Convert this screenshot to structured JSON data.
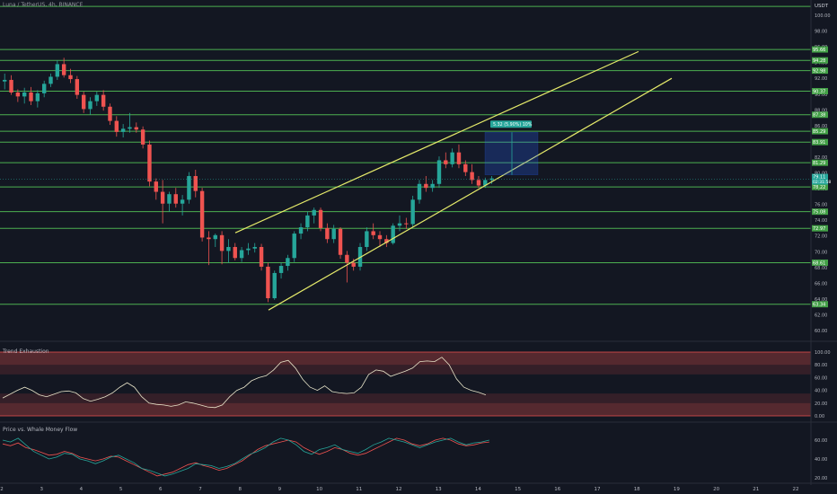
{
  "header": {
    "symbol": "Luna / TetherUS, 4h, BINANCE",
    "currency": "USDT"
  },
  "colors": {
    "background": "#131722",
    "support_line": "#4caf50",
    "channel": "#e5ea6a",
    "up": "#26a69a",
    "down": "#ef5350",
    "label_bg": "#43a047",
    "white_line": "#e8e4c9",
    "whale_green": "#26a69a",
    "whale_red": "#ef5350"
  },
  "main_panel": {
    "y_ticks": [
      "100.00",
      "98.00",
      "96.00",
      "94.00",
      "92.00",
      "90.00",
      "88.00",
      "86.00",
      "84.00",
      "82.00",
      "80.00",
      "78.00",
      "76.00",
      "74.00",
      "72.00",
      "70.00",
      "68.00",
      "66.00",
      "64.00",
      "62.00",
      "60.00"
    ],
    "horizontal_levels": [
      {
        "value": 101.12,
        "label": ""
      },
      {
        "value": 95.66,
        "label": "95.66"
      },
      {
        "value": 94.28,
        "label": "94.28"
      },
      {
        "value": 92.98,
        "label": "92.98"
      },
      {
        "value": 90.37,
        "label": "90.37"
      },
      {
        "value": 87.38,
        "label": "87.38"
      },
      {
        "value": 85.29,
        "label": "85.29"
      },
      {
        "value": 83.91,
        "label": "83.91"
      },
      {
        "value": 81.29,
        "label": "81.29"
      },
      {
        "value": 78.22,
        "label": "78.22"
      },
      {
        "value": 75.08,
        "label": "75.08"
      },
      {
        "value": 72.97,
        "label": "72.97"
      },
      {
        "value": 68.61,
        "label": "68.61"
      },
      {
        "value": 63.34,
        "label": "63.34"
      }
    ],
    "price_labels": {
      "current": "79.11",
      "countdown": "02:31:58"
    },
    "measure_label": "5.32 (5.90%) 10%",
    "candles": [
      {
        "o": 91.6,
        "h": 92.6,
        "l": 90.6,
        "c": 91.8
      },
      {
        "o": 91.8,
        "h": 92.4,
        "l": 89.9,
        "c": 90.2
      },
      {
        "o": 90.2,
        "h": 90.6,
        "l": 89.0,
        "c": 89.7
      },
      {
        "o": 89.7,
        "h": 90.8,
        "l": 88.8,
        "c": 90.2
      },
      {
        "o": 90.2,
        "h": 90.9,
        "l": 88.6,
        "c": 89.1
      },
      {
        "o": 89.1,
        "h": 90.5,
        "l": 88.3,
        "c": 90.1
      },
      {
        "o": 90.1,
        "h": 91.7,
        "l": 89.6,
        "c": 91.3
      },
      {
        "o": 91.3,
        "h": 92.6,
        "l": 90.9,
        "c": 92.2
      },
      {
        "o": 92.2,
        "h": 94.3,
        "l": 91.8,
        "c": 93.8
      },
      {
        "o": 93.8,
        "h": 94.6,
        "l": 92.1,
        "c": 92.4
      },
      {
        "o": 92.4,
        "h": 93.2,
        "l": 91.4,
        "c": 91.9
      },
      {
        "o": 91.9,
        "h": 92.3,
        "l": 89.4,
        "c": 89.9
      },
      {
        "o": 89.9,
        "h": 90.3,
        "l": 87.6,
        "c": 88.1
      },
      {
        "o": 88.1,
        "h": 89.6,
        "l": 87.4,
        "c": 89.1
      },
      {
        "o": 89.1,
        "h": 90.3,
        "l": 88.5,
        "c": 89.9
      },
      {
        "o": 89.9,
        "h": 90.5,
        "l": 87.9,
        "c": 88.4
      },
      {
        "o": 88.4,
        "h": 88.8,
        "l": 86.1,
        "c": 86.6
      },
      {
        "o": 86.6,
        "h": 87.2,
        "l": 84.6,
        "c": 85.2
      },
      {
        "o": 85.2,
        "h": 86.2,
        "l": 84.5,
        "c": 85.6
      },
      {
        "o": 85.6,
        "h": 87.6,
        "l": 85.1,
        "c": 85.8
      },
      {
        "o": 85.8,
        "h": 86.4,
        "l": 85.1,
        "c": 85.5
      },
      {
        "o": 85.5,
        "h": 85.9,
        "l": 83.1,
        "c": 83.6
      },
      {
        "o": 83.6,
        "h": 84.1,
        "l": 78.3,
        "c": 78.9
      },
      {
        "o": 78.9,
        "h": 79.3,
        "l": 76.6,
        "c": 77.6
      },
      {
        "o": 77.6,
        "h": 79.1,
        "l": 73.6,
        "c": 76.1
      },
      {
        "o": 76.1,
        "h": 77.6,
        "l": 75.1,
        "c": 77.3
      },
      {
        "o": 77.3,
        "h": 78.1,
        "l": 75.6,
        "c": 76.1
      },
      {
        "o": 76.1,
        "h": 77.2,
        "l": 74.6,
        "c": 76.6
      },
      {
        "o": 76.6,
        "h": 80.1,
        "l": 76.1,
        "c": 79.6
      },
      {
        "o": 79.6,
        "h": 80.4,
        "l": 76.9,
        "c": 77.7
      },
      {
        "o": 77.7,
        "h": 78.1,
        "l": 71.3,
        "c": 71.8
      },
      {
        "o": 71.8,
        "h": 72.6,
        "l": 68.3,
        "c": 71.6
      },
      {
        "o": 71.6,
        "h": 72.3,
        "l": 70.6,
        "c": 72.1
      },
      {
        "o": 72.1,
        "h": 72.6,
        "l": 68.4,
        "c": 70.1
      },
      {
        "o": 70.1,
        "h": 71.6,
        "l": 68.6,
        "c": 70.6
      },
      {
        "o": 70.6,
        "h": 71.1,
        "l": 68.9,
        "c": 69.2
      },
      {
        "o": 69.2,
        "h": 70.6,
        "l": 68.7,
        "c": 70.2
      },
      {
        "o": 70.2,
        "h": 71.1,
        "l": 69.6,
        "c": 70.4
      },
      {
        "o": 70.4,
        "h": 71.1,
        "l": 69.9,
        "c": 70.6
      },
      {
        "o": 70.6,
        "h": 71.0,
        "l": 67.6,
        "c": 68.1
      },
      {
        "o": 68.1,
        "h": 68.6,
        "l": 63.6,
        "c": 64.1
      },
      {
        "o": 64.1,
        "h": 67.6,
        "l": 63.9,
        "c": 67.3
      },
      {
        "o": 67.3,
        "h": 68.6,
        "l": 66.6,
        "c": 68.2
      },
      {
        "o": 68.2,
        "h": 69.6,
        "l": 67.6,
        "c": 69.2
      },
      {
        "o": 69.2,
        "h": 72.6,
        "l": 68.7,
        "c": 72.3
      },
      {
        "o": 72.3,
        "h": 73.6,
        "l": 71.6,
        "c": 73.1
      },
      {
        "o": 73.1,
        "h": 75.1,
        "l": 72.6,
        "c": 74.6
      },
      {
        "o": 74.6,
        "h": 75.6,
        "l": 73.6,
        "c": 75.3
      },
      {
        "o": 75.3,
        "h": 75.6,
        "l": 72.6,
        "c": 73.0
      },
      {
        "o": 73.0,
        "h": 73.6,
        "l": 71.1,
        "c": 71.6
      },
      {
        "o": 71.6,
        "h": 73.4,
        "l": 71.1,
        "c": 72.9
      },
      {
        "o": 72.9,
        "h": 73.1,
        "l": 69.1,
        "c": 69.6
      },
      {
        "o": 69.6,
        "h": 70.1,
        "l": 66.1,
        "c": 68.6
      },
      {
        "o": 68.6,
        "h": 69.1,
        "l": 67.6,
        "c": 68.1
      },
      {
        "o": 68.1,
        "h": 71.1,
        "l": 67.6,
        "c": 70.6
      },
      {
        "o": 70.6,
        "h": 73.1,
        "l": 70.1,
        "c": 72.6
      },
      {
        "o": 72.6,
        "h": 73.6,
        "l": 71.6,
        "c": 72.1
      },
      {
        "o": 72.1,
        "h": 72.6,
        "l": 70.6,
        "c": 71.6
      },
      {
        "o": 71.6,
        "h": 72.1,
        "l": 70.6,
        "c": 71.1
      },
      {
        "o": 71.1,
        "h": 73.6,
        "l": 70.9,
        "c": 73.3
      },
      {
        "o": 73.3,
        "h": 74.6,
        "l": 72.6,
        "c": 73.6
      },
      {
        "o": 73.6,
        "h": 74.3,
        "l": 72.9,
        "c": 73.5
      },
      {
        "o": 73.5,
        "h": 77.1,
        "l": 73.1,
        "c": 76.6
      },
      {
        "o": 76.6,
        "h": 79.1,
        "l": 76.1,
        "c": 78.6
      },
      {
        "o": 78.6,
        "h": 79.6,
        "l": 77.6,
        "c": 78.1
      },
      {
        "o": 78.1,
        "h": 79.1,
        "l": 77.6,
        "c": 78.6
      },
      {
        "o": 78.6,
        "h": 82.1,
        "l": 78.1,
        "c": 81.6
      },
      {
        "o": 81.6,
        "h": 82.6,
        "l": 80.6,
        "c": 81.1
      },
      {
        "o": 81.1,
        "h": 83.1,
        "l": 80.7,
        "c": 82.6
      },
      {
        "o": 82.6,
        "h": 83.6,
        "l": 80.6,
        "c": 81.1
      },
      {
        "o": 81.1,
        "h": 81.6,
        "l": 79.6,
        "c": 80.1
      },
      {
        "o": 80.1,
        "h": 81.1,
        "l": 78.6,
        "c": 79.1
      },
      {
        "o": 79.1,
        "h": 79.6,
        "l": 78.1,
        "c": 78.4
      },
      {
        "o": 78.4,
        "h": 79.4,
        "l": 78.1,
        "c": 79.1
      },
      {
        "o": 79.1,
        "h": 79.6,
        "l": 78.6,
        "c": 79.3
      }
    ]
  },
  "trend_panel": {
    "title": "Trend Exhaustion",
    "y_ticks": [
      "100.00",
      "80.00",
      "60.00",
      "40.00",
      "20.00",
      "0.00"
    ],
    "values": [
      28,
      34,
      40,
      45,
      40,
      33,
      30,
      34,
      38,
      39,
      36,
      27,
      23,
      26,
      30,
      36,
      45,
      52,
      45,
      30,
      20,
      18,
      17,
      15,
      17,
      22,
      20,
      17,
      14,
      13,
      17,
      30,
      40,
      45,
      55,
      60,
      63,
      72,
      84,
      87,
      75,
      57,
      45,
      40,
      47,
      38,
      36,
      35,
      36,
      45,
      65,
      72,
      70,
      62,
      66,
      70,
      75,
      85,
      86,
      85,
      92,
      80,
      58,
      45,
      40,
      37,
      33
    ]
  },
  "whale_panel": {
    "title": "Price vs. Whale Money Flow",
    "y_ticks": [
      "60.00",
      "40.00",
      "20.00"
    ],
    "green_values": [
      60,
      58,
      62,
      55,
      48,
      44,
      40,
      42,
      46,
      45,
      40,
      38,
      35,
      38,
      42,
      44,
      40,
      36,
      30,
      28,
      25,
      22,
      24,
      27,
      30,
      35,
      34,
      33,
      30,
      32,
      35,
      40,
      45,
      48,
      52,
      58,
      62,
      60,
      55,
      48,
      45,
      50,
      52,
      55,
      50,
      48,
      46,
      50,
      55,
      58,
      62,
      60,
      58,
      55,
      52,
      55,
      58,
      60,
      62,
      58,
      55,
      57,
      58,
      60
    ],
    "red_values": [
      56,
      54,
      57,
      52,
      50,
      47,
      44,
      45,
      48,
      46,
      42,
      40,
      38,
      40,
      43,
      42,
      38,
      34,
      30,
      26,
      22,
      24,
      26,
      30,
      34,
      36,
      33,
      31,
      28,
      30,
      34,
      38,
      44,
      50,
      54,
      56,
      58,
      60,
      58,
      52,
      48,
      45,
      48,
      52,
      50,
      46,
      44,
      46,
      50,
      54,
      58,
      62,
      60,
      56,
      54,
      56,
      60,
      62,
      60,
      56,
      54,
      55,
      57,
      58
    ]
  },
  "x_axis": {
    "labels": [
      "2",
      "3",
      "4",
      "5",
      "6",
      "7",
      "8",
      "9",
      "10",
      "11",
      "12",
      "13",
      "14",
      "15",
      "16",
      "17",
      "18",
      "19",
      "20",
      "21",
      "22"
    ]
  }
}
